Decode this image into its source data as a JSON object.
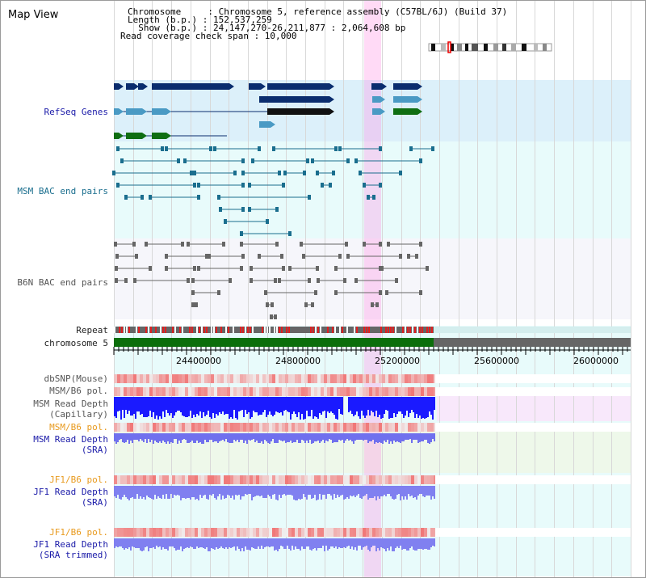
{
  "title": "Map View",
  "header": {
    "chromosome_line": "Chromosome     : Chromosome 5, reference assembly (C57BL/6J) (Build 37)",
    "length_line": "Length (b.p.) : 152,537,259",
    "show_line": "  Show (b.p.) : 24,147,270-26,211,877 : 2,064,608 bp",
    "span_line": "Read coverage check span : 10,000"
  },
  "tracks": {
    "refseq": "RefSeq Genes",
    "msm_bac": "MSM BAC end pairs",
    "b6n_bac": "B6N BAC end pairs",
    "repeat": "Repeat",
    "chromosome": "chromosome 5",
    "dbsnp": "dbSNP(Mouse)",
    "msm_b6_pol_1": "MSM/B6 pol.",
    "msm_depth_cap_1": "MSM Read Depth",
    "msm_depth_cap_2": "(Capillary)",
    "msm_b6_pol_2": "MSM/B6 pol.",
    "msm_depth_sra_1": "MSM Read Depth",
    "msm_depth_sra_2": "(SRA)",
    "jf1_b6_pol_1": "JF1/B6 pol.",
    "jf1_depth_sra_1": "JF1 Read Depth",
    "jf1_depth_sra_2": "(SRA)",
    "jf1_b6_pol_2": "JF1/B6 pol.",
    "jf1_depth_trim_1": "JF1 Read Depth",
    "jf1_depth_trim_2": "(SRA trimmed)"
  },
  "axis": {
    "ticks": [
      "24400000",
      "24800000",
      "25200000",
      "25600000",
      "26000000"
    ]
  },
  "colors": {
    "refseq_band": "#dff1fb",
    "bac_band": "#e8fbfb",
    "b6n_band": "#f6f6fb",
    "highlight": "#ffc8f0",
    "gene_dark": "#0a2d6e",
    "gene_mid": "#4a9ac4",
    "gene_green": "#0f6e12",
    "msm_line": "#1a6e8e",
    "b6n_line": "#666666",
    "chrom_green": "#0b6e0b",
    "chrom_grey": "#666666",
    "depth_blue": "#1a1aff",
    "depth_lavender": "#8080f0"
  }
}
